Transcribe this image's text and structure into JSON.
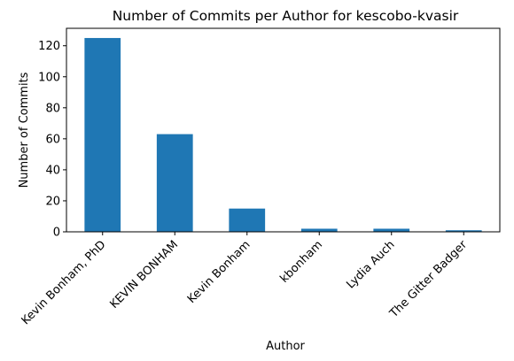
{
  "chart_data": {
    "type": "bar",
    "title": "Number of Commits per Author for kescobo-kvasir",
    "xlabel": "Author",
    "ylabel": "Number of Commits",
    "categories": [
      "Kevin Bonham, PhD",
      "KEVIN BONHAM",
      "Kevin Bonham",
      "kbonham",
      "Lydia Auch",
      "The Gitter Badger"
    ],
    "values": [
      125,
      63,
      15,
      2,
      2,
      1
    ],
    "ylim": [
      0,
      131.25
    ],
    "yticks": [
      0,
      20,
      40,
      60,
      80,
      100,
      120
    ],
    "grid": false,
    "legend": "none",
    "bar_color": "#1f77b4"
  }
}
